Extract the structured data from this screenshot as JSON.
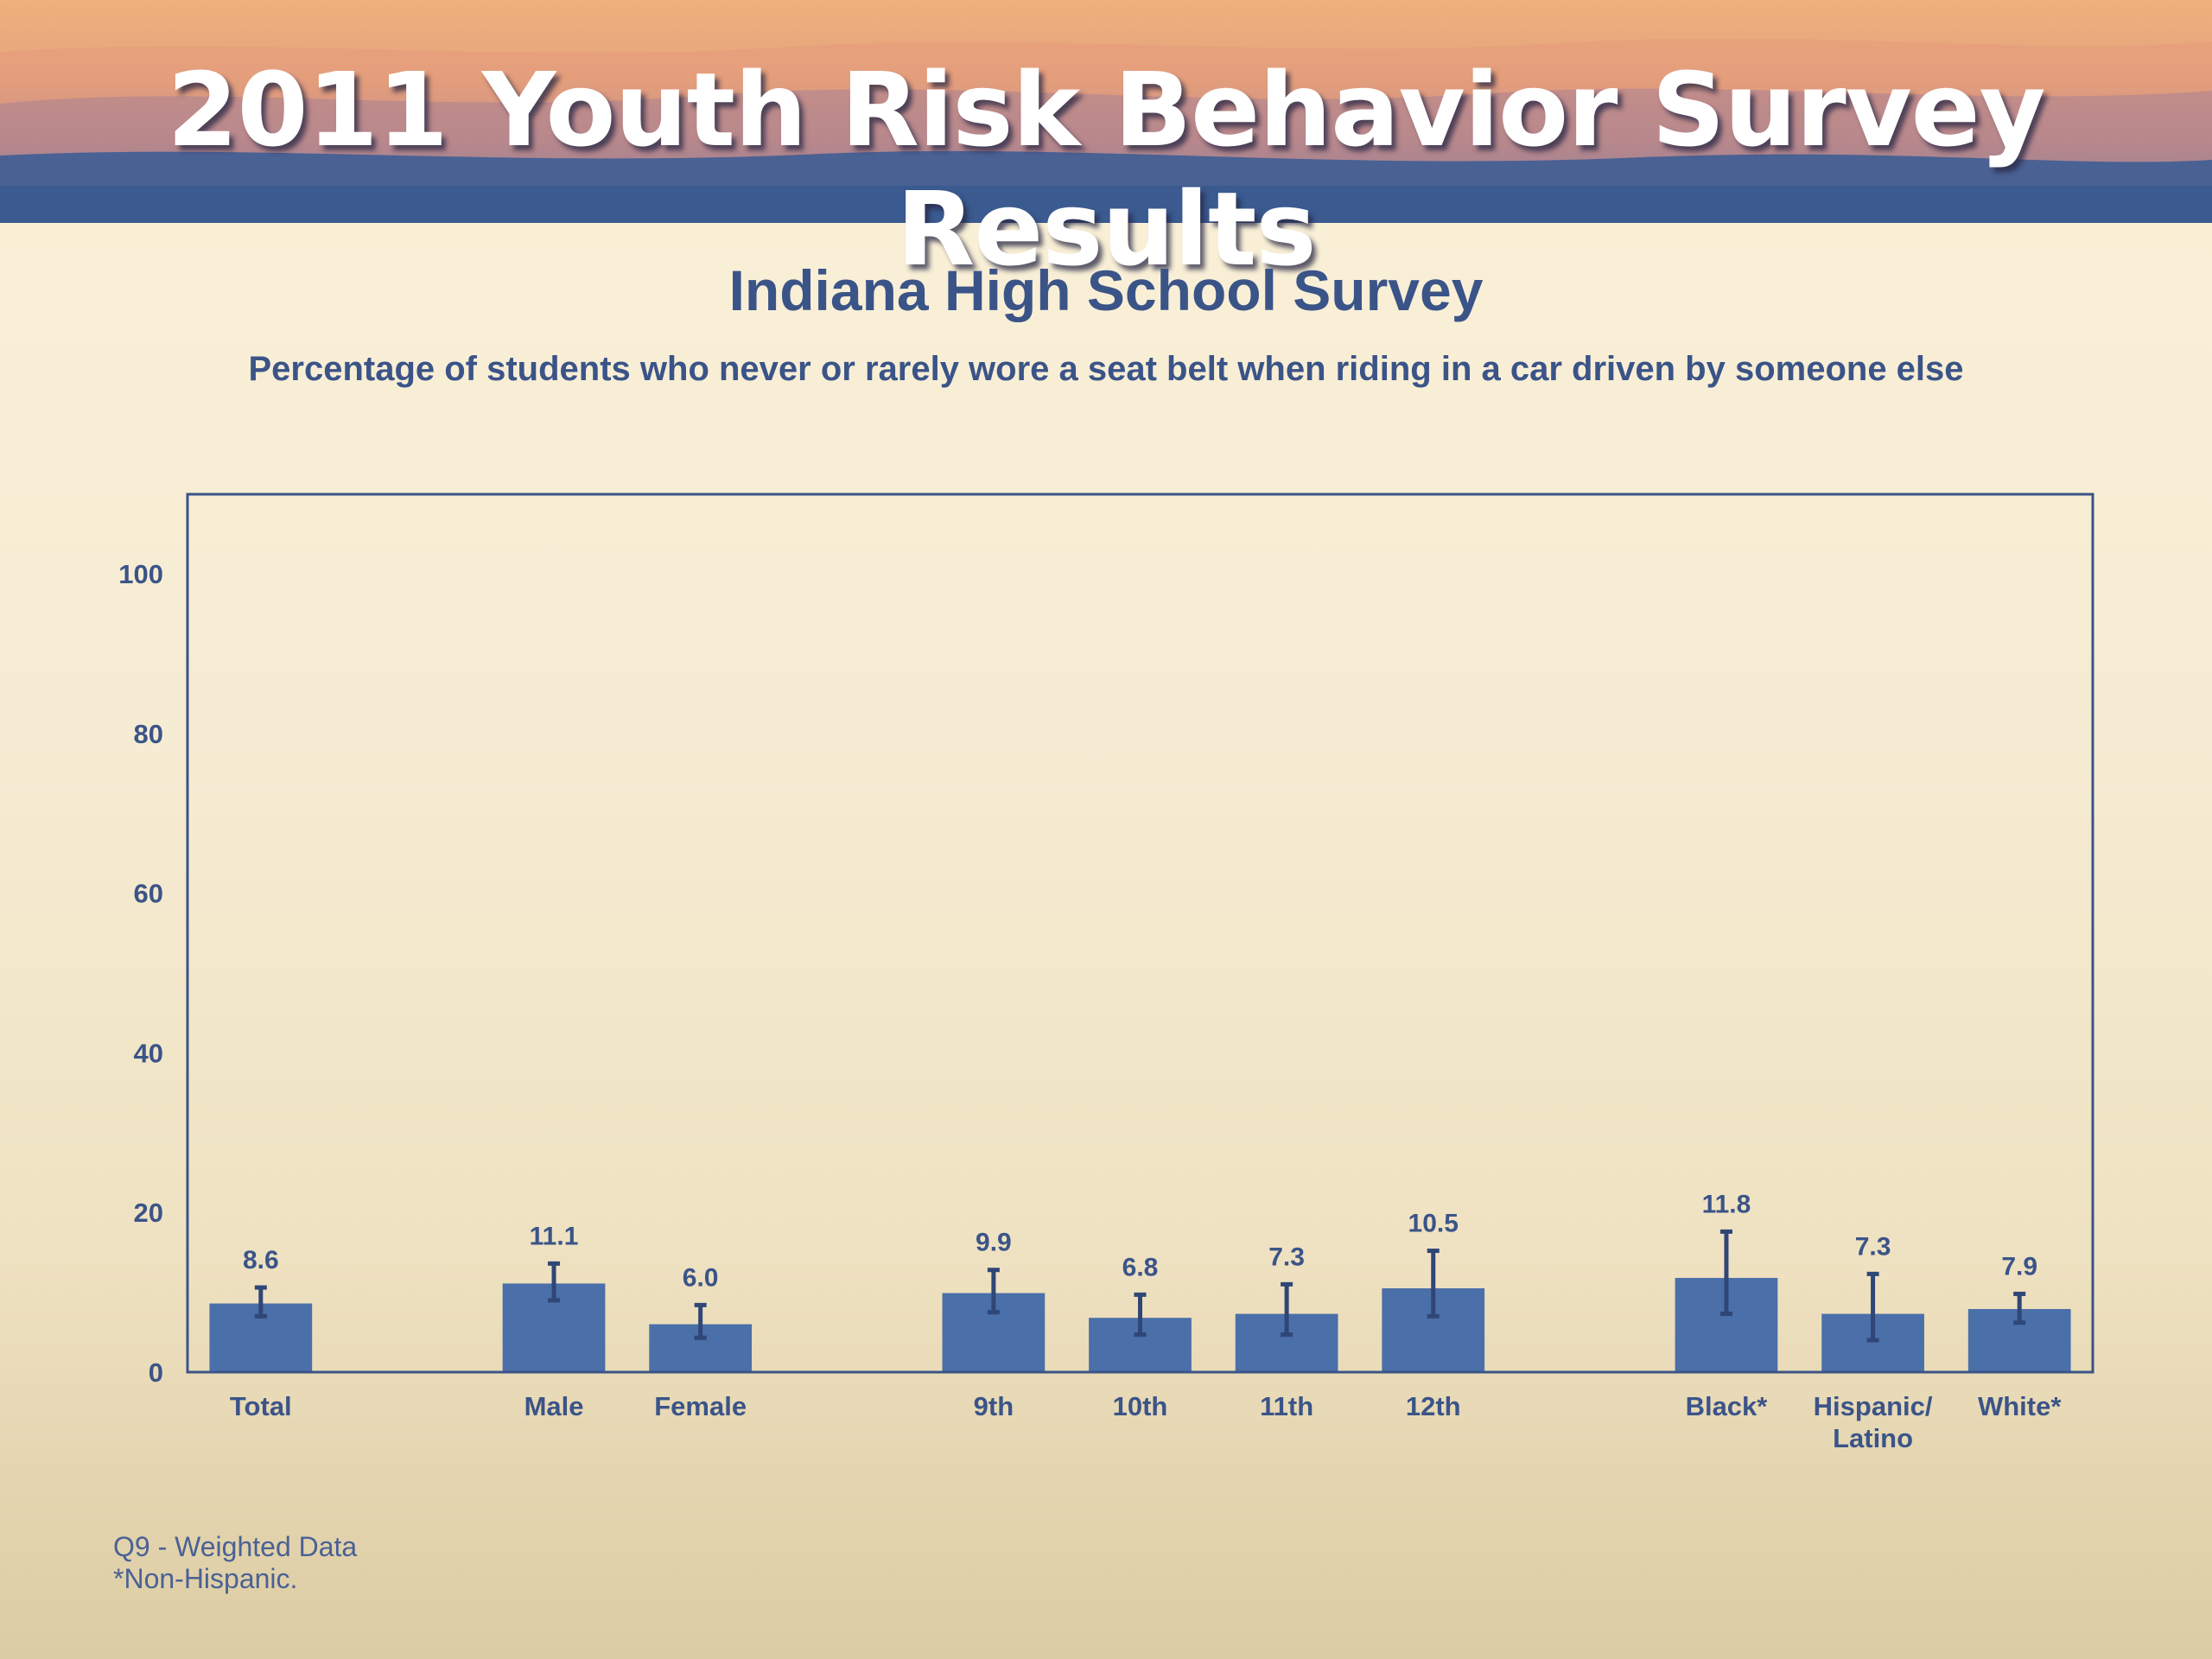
{
  "banner": {
    "title": "2011 Youth Risk Behavior Survey Results"
  },
  "colors": {
    "bar": "#4a6fa9",
    "text": "#3b5488",
    "axis": "#3b5488"
  },
  "chart_data": {
    "type": "bar",
    "title": "Indiana High School Survey",
    "subtitle": "Percentage of students who never or rarely wore a seat belt when riding in a car driven by someone else",
    "xlabel": "",
    "ylabel": "",
    "ylim": [
      0,
      110
    ],
    "yticks": [
      0,
      20,
      40,
      60,
      80,
      100
    ],
    "grid": false,
    "legend": "none",
    "categories": [
      {
        "label": "Total",
        "value": 8.6,
        "value_label": "8.6",
        "ci": [
          7.0,
          10.6
        ],
        "group": 0
      },
      {
        "label": "Male",
        "value": 11.1,
        "value_label": "11.1",
        "ci": [
          9.0,
          13.6
        ],
        "group": 1
      },
      {
        "label": "Female",
        "value": 6.0,
        "value_label": "6.0",
        "ci": [
          4.3,
          8.4
        ],
        "group": 1
      },
      {
        "label": "9th",
        "value": 9.9,
        "value_label": "9.9",
        "ci": [
          7.5,
          12.8
        ],
        "group": 2
      },
      {
        "label": "10th",
        "value": 6.8,
        "value_label": "6.8",
        "ci": [
          4.7,
          9.7
        ],
        "group": 2
      },
      {
        "label": "11th",
        "value": 7.3,
        "value_label": "7.3",
        "ci": [
          4.7,
          11.0
        ],
        "group": 2
      },
      {
        "label": "12th",
        "value": 10.5,
        "value_label": "10.5",
        "ci": [
          7.0,
          15.2
        ],
        "group": 2
      },
      {
        "label": "Black*",
        "value": 11.8,
        "value_label": "11.8",
        "ci": [
          7.3,
          17.6
        ],
        "group": 3
      },
      {
        "label": "Hispanic/\nLatino",
        "value": 7.3,
        "value_label": "7.3",
        "ci": [
          4.0,
          12.3
        ],
        "group": 3
      },
      {
        "label": "White*",
        "value": 7.9,
        "value_label": "7.9",
        "ci": [
          6.2,
          9.8
        ],
        "group": 3
      }
    ]
  },
  "footnotes": {
    "line1": "Q9 - Weighted Data",
    "line2": "*Non-Hispanic."
  }
}
